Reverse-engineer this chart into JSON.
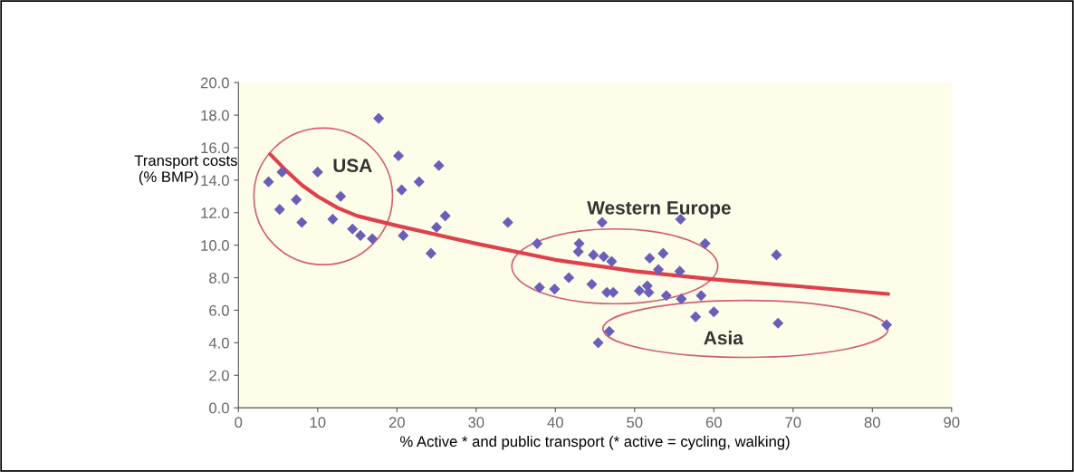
{
  "chart_data": {
    "type": "scatter",
    "xlabel": "% Active * and public transport (* active = cycling, walking)",
    "ylabel": "Transport costs\n (% BMP)",
    "xlim": [
      0,
      90
    ],
    "xticks": [
      0,
      10,
      20,
      30,
      40,
      50,
      60,
      70,
      80,
      90
    ],
    "ylim": [
      0,
      20
    ],
    "yticks": [
      {
        "value": 0,
        "label": "0.0"
      },
      {
        "value": 2,
        "label": "2.0"
      },
      {
        "value": 4,
        "label": "4.0"
      },
      {
        "value": 6,
        "label": "6.0"
      },
      {
        "value": 8,
        "label": "8.0"
      },
      {
        "value": 10,
        "label": "10.0"
      },
      {
        "value": 12,
        "label": "12.0"
      },
      {
        "value": 14,
        "label": "14.0"
      },
      {
        "value": 16,
        "label": "16.0"
      },
      {
        "value": 18,
        "label": "18.0"
      },
      {
        "value": 20,
        "label": "20.0"
      }
    ],
    "grid": false,
    "legend": false,
    "marker": "diamond",
    "series": [
      {
        "color": "#6a5fb8",
        "x": [
          3.8,
          5.2,
          5.5,
          7.3,
          8.0,
          10.0,
          11.9,
          12.9,
          14.4,
          15.4,
          16.9,
          17.7,
          20.2,
          20.6,
          20.8,
          22.8,
          24.3,
          25.0,
          25.3,
          26.1,
          34.0,
          45.9,
          55.8,
          37.7,
          43.0,
          42.9,
          44.8,
          46.1,
          47.1,
          51.9,
          53.6,
          58.9,
          67.9,
          53.0,
          55.7,
          41.7,
          38.0,
          39.9,
          44.6,
          46.5,
          47.3,
          50.6,
          51.6,
          51.8,
          54.0,
          55.9,
          58.4,
          57.7,
          60.0,
          68.1,
          81.8,
          46.8,
          45.4
        ],
        "values": [
          13.9,
          12.2,
          14.5,
          12.8,
          11.4,
          14.5,
          11.6,
          13.0,
          11.0,
          10.6,
          10.4,
          17.8,
          15.5,
          13.4,
          10.6,
          13.9,
          9.5,
          11.1,
          14.9,
          11.8,
          11.4,
          11.4,
          11.6,
          10.1,
          10.1,
          9.6,
          9.4,
          9.3,
          9.0,
          9.2,
          9.5,
          10.1,
          9.4,
          8.5,
          8.4,
          8.0,
          7.4,
          7.3,
          7.6,
          7.1,
          7.1,
          7.2,
          7.5,
          7.1,
          6.9,
          6.7,
          6.9,
          5.6,
          5.9,
          5.2,
          5.1,
          4.7,
          4.0
        ]
      },
      {
        "type": "line",
        "color": "#e0404a",
        "marker": "none",
        "x": [
          4,
          6,
          8,
          10,
          12.5,
          15,
          20,
          30,
          40,
          50,
          60,
          70,
          82
        ],
        "values": [
          15.6,
          14.6,
          13.7,
          13.0,
          12.3,
          11.8,
          11.2,
          10.1,
          9.1,
          8.4,
          7.9,
          7.5,
          7.0
        ]
      }
    ],
    "annotations": [
      "USA",
      "Western Europe",
      "Asia"
    ]
  }
}
